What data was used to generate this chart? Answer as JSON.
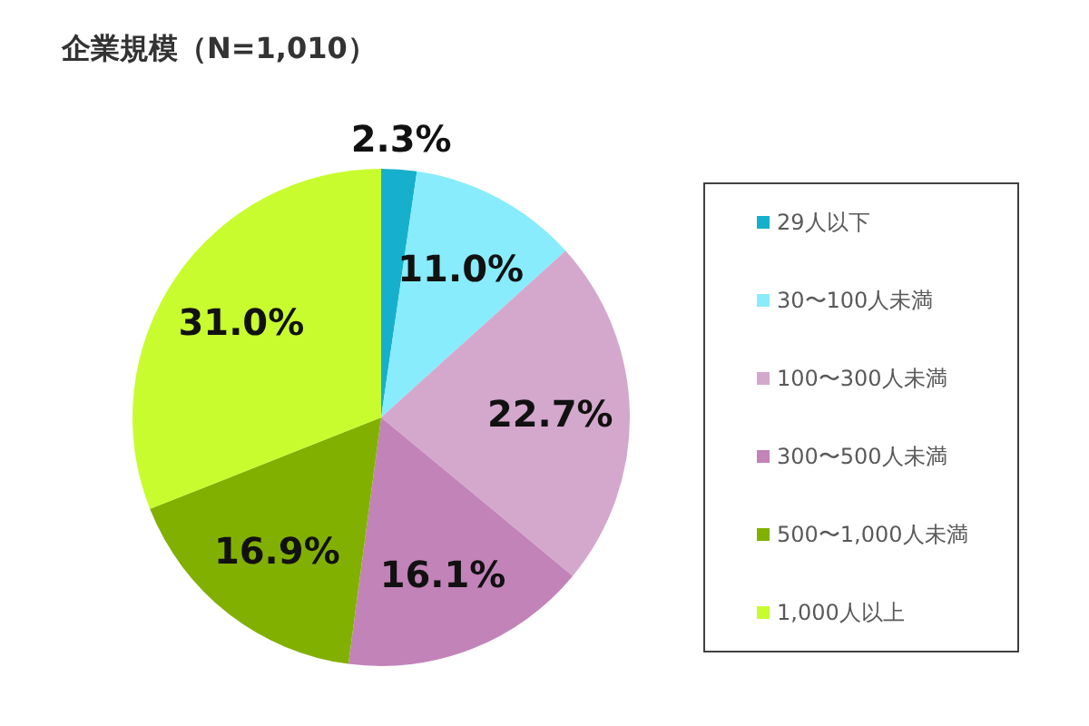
{
  "chart_data": {
    "type": "pie",
    "title": "企業規模（N=1,010）",
    "categories": [
      "29人以下",
      "30〜100人未満",
      "100〜300人未満",
      "300〜500人未満",
      "500〜1,000人未満",
      "1,000人以上"
    ],
    "values": [
      2.3,
      11.0,
      22.7,
      16.1,
      16.9,
      31.0
    ],
    "value_labels": [
      "2.3%",
      "11.0%",
      "22.7%",
      "16.1%",
      "16.9%",
      "31.0%"
    ],
    "colors": [
      "#17b0cc",
      "#88ecfc",
      "#d4a8cc",
      "#c283b8",
      "#82b000",
      "#c8fc2f"
    ],
    "legend": "right"
  }
}
